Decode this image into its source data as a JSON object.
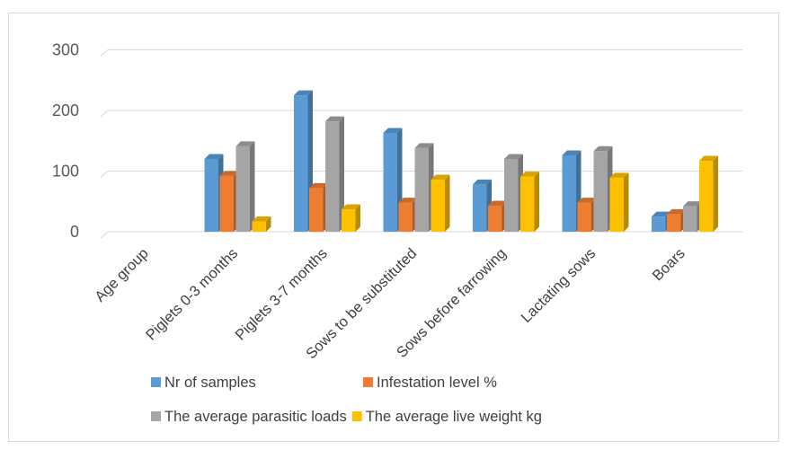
{
  "chart_data": {
    "type": "bar",
    "style": "3d-clustered-column",
    "categories": [
      "Age group",
      "Piglets 0-3 months",
      "Piglets 3-7 months",
      "Sows to be substituted",
      "Sows before farrowing",
      "Lactating sows",
      "Boars"
    ],
    "series": [
      {
        "name": "Nr of samples",
        "color": "#5b9bd5",
        "values": [
          null,
          120,
          225,
          163,
          78,
          126,
          25
        ]
      },
      {
        "name": "Infestation  level %",
        "color": "#ed7d31",
        "values": [
          null,
          92,
          72,
          48,
          43,
          48,
          29
        ]
      },
      {
        "name": "The average parasitic loads",
        "color": "#a5a5a5",
        "values": [
          null,
          141,
          182,
          138,
          120,
          133,
          42
        ]
      },
      {
        "name": "The average live weight kg",
        "color": "#ffc000",
        "values": [
          null,
          17,
          37,
          86,
          91,
          89,
          117
        ]
      }
    ],
    "yticks": [
      0,
      100,
      200,
      300
    ],
    "ylim": [
      0,
      300
    ],
    "grid": true,
    "legend_position": "bottom"
  }
}
